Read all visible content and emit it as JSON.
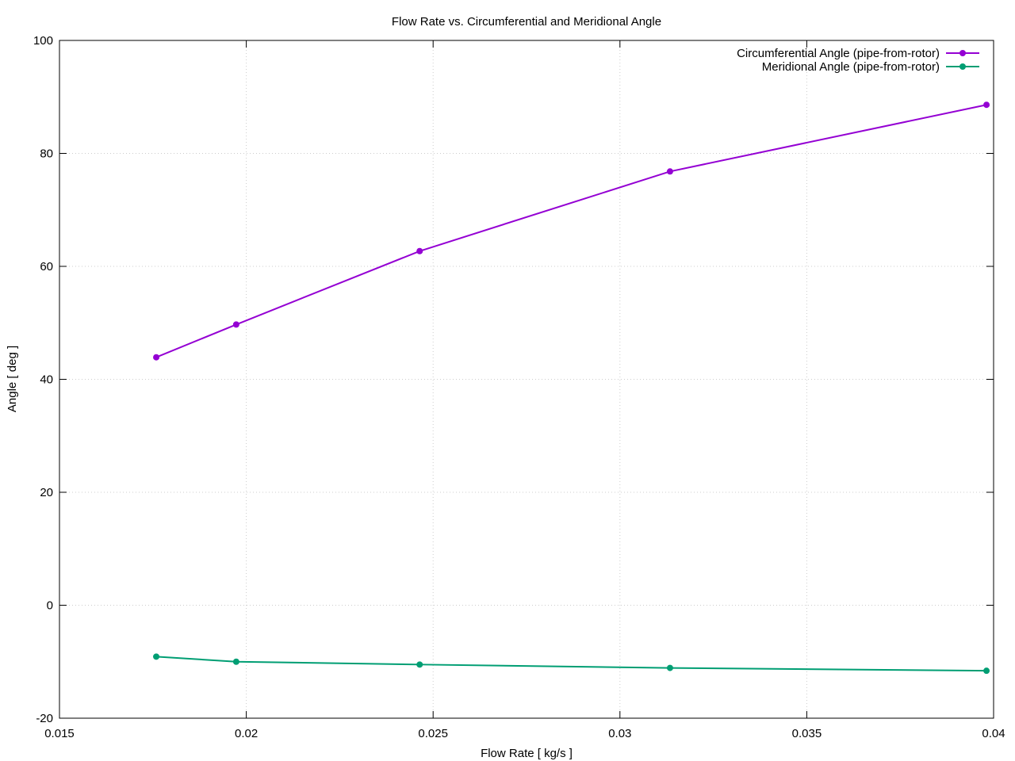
{
  "chart_data": {
    "type": "line",
    "title": "Flow Rate vs. Circumferential and Meridional Angle",
    "x_label": "Flow Rate [ kg/s ]",
    "y_label": "Angle [ deg ]",
    "x": [
      0.01759,
      0.01973,
      0.02464,
      0.03134,
      0.03981
    ],
    "series": [
      {
        "name": "Circumferential Angle (pipe-from-rotor)",
        "color": "#9400d3",
        "values": [
          43.9,
          49.7,
          62.7,
          76.8,
          88.6
        ]
      },
      {
        "name": "Meridional Angle (pipe-from-rotor)",
        "color": "#009e73",
        "values": [
          -9.1,
          -10.0,
          -10.5,
          -11.1,
          -11.6
        ]
      }
    ],
    "xlim": [
      0.015,
      0.04
    ],
    "xticks": [
      0.015,
      0.02,
      0.025,
      0.03,
      0.035,
      0.04
    ],
    "ylim": [
      -20,
      100
    ],
    "yticks": [
      -20,
      0,
      20,
      40,
      60,
      80,
      100
    ],
    "grid": true,
    "legend": "top-right"
  }
}
